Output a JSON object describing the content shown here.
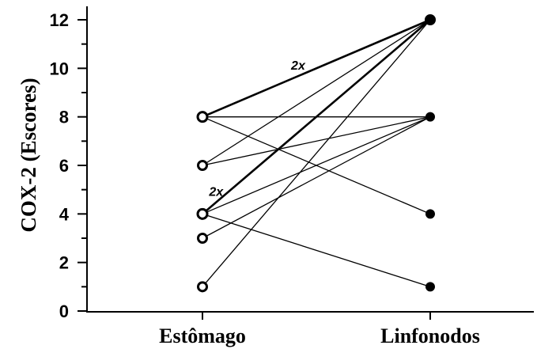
{
  "chart_data": {
    "type": "line",
    "ylabel": "COX-2 (Escores)",
    "xlabel": "",
    "categories": [
      "Estômago",
      "Linfonodos"
    ],
    "ylim": [
      0,
      12
    ],
    "yticks": [
      0,
      2,
      4,
      6,
      8,
      10,
      12
    ],
    "yticks_minor": [
      1,
      3,
      5,
      7,
      9,
      11
    ],
    "markers": {
      "Estômago": "open-circle",
      "Linfonodos": "filled-circle"
    },
    "pairs": [
      {
        "from": 8,
        "to": 12,
        "count": 2
      },
      {
        "from": 8,
        "to": 8,
        "count": 1
      },
      {
        "from": 8,
        "to": 4,
        "count": 1
      },
      {
        "from": 6,
        "to": 12,
        "count": 1
      },
      {
        "from": 6,
        "to": 8,
        "count": 1
      },
      {
        "from": 4,
        "to": 12,
        "count": 2
      },
      {
        "from": 4,
        "to": 8,
        "count": 1
      },
      {
        "from": 4,
        "to": 1,
        "count": 1
      },
      {
        "from": 3,
        "to": 8,
        "count": 1
      },
      {
        "from": 1,
        "to": 12,
        "count": 1
      }
    ],
    "annotations": [
      {
        "text": "2x",
        "pair_index": 0
      },
      {
        "text": "2x",
        "pair_index": 5
      }
    ]
  }
}
